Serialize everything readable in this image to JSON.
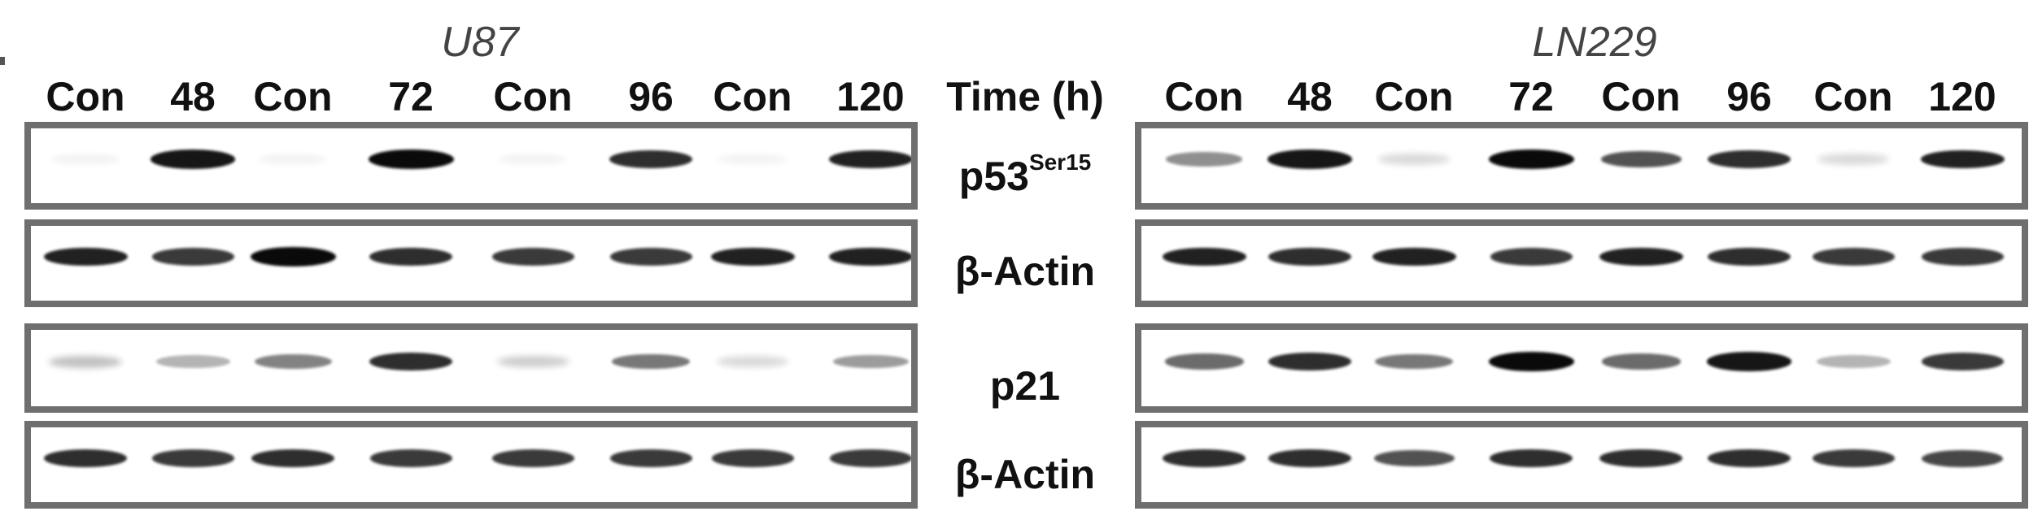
{
  "panel_marker": "",
  "cell_lines": [
    {
      "name": "U87"
    },
    {
      "name": "LN229"
    }
  ],
  "lanes": [
    "Con",
    "48",
    "Con",
    "72",
    "Con",
    "96",
    "Con",
    "120"
  ],
  "time_label": "Time (h)",
  "row_labels": {
    "p53": {
      "main": "p53",
      "sup": "Ser15"
    },
    "actin1": "β-Actin",
    "p21": "p21",
    "actin2": "β-Actin"
  },
  "band_intensity": {
    "U87": {
      "p53": [
        0.05,
        0.95,
        0.05,
        1.0,
        0.05,
        0.85,
        0.05,
        0.9
      ],
      "actin1": [
        0.9,
        0.8,
        1.0,
        0.85,
        0.8,
        0.8,
        0.9,
        0.9
      ],
      "p21": [
        0.25,
        0.3,
        0.5,
        0.85,
        0.2,
        0.55,
        0.15,
        0.4
      ],
      "actin2": [
        0.85,
        0.8,
        0.85,
        0.8,
        0.8,
        0.8,
        0.8,
        0.8
      ]
    },
    "LN229": {
      "p53": [
        0.45,
        0.95,
        0.15,
        1.0,
        0.7,
        0.85,
        0.15,
        0.9
      ],
      "actin1": [
        0.9,
        0.85,
        0.9,
        0.8,
        0.9,
        0.85,
        0.8,
        0.8
      ],
      "p21": [
        0.6,
        0.85,
        0.55,
        1.0,
        0.6,
        0.95,
        0.3,
        0.8
      ],
      "actin2": [
        0.85,
        0.85,
        0.7,
        0.85,
        0.85,
        0.85,
        0.8,
        0.75
      ]
    }
  },
  "colors": {
    "frame": "#6f6f6f",
    "band": "#0a0a0a",
    "title": "#444444"
  }
}
